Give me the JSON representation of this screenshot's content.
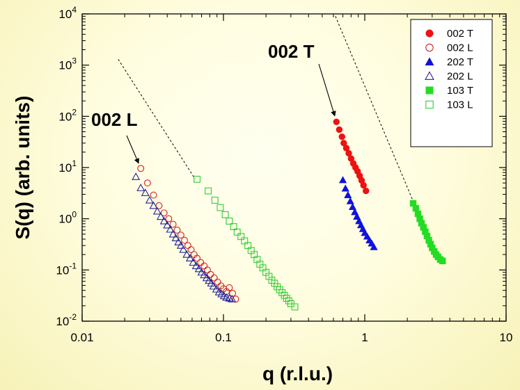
{
  "chart_data": {
    "type": "scatter",
    "xscale": "log",
    "yscale": "log",
    "xlim": [
      0.01,
      10
    ],
    "ylim": [
      0.01,
      10000
    ],
    "xlabel": "q  (r.l.u.)",
    "ylabel": "S(q)   (arb. units)",
    "x_ticks": [
      {
        "value": 0.01,
        "label": "0.01"
      },
      {
        "value": 0.1,
        "label": "0.1"
      },
      {
        "value": 1,
        "label": "1"
      },
      {
        "value": 10,
        "label": "10"
      }
    ],
    "y_ticks": [
      {
        "value": 0.01,
        "base": "10",
        "exp": "-2"
      },
      {
        "value": 0.1,
        "base": "10",
        "exp": "-1"
      },
      {
        "value": 1,
        "base": "10",
        "exp": "0"
      },
      {
        "value": 10,
        "base": "10",
        "exp": "1"
      },
      {
        "value": 100,
        "base": "10",
        "exp": "2"
      },
      {
        "value": 1000,
        "base": "10",
        "exp": "3"
      },
      {
        "value": 10000,
        "base": "10",
        "exp": "4"
      }
    ],
    "legend_position": "top-right",
    "series": [
      {
        "name": "002 T",
        "marker": "circle",
        "filled": true,
        "color": "#ee1111",
        "x": [
          0.63,
          0.66,
          0.69,
          0.71,
          0.74,
          0.77,
          0.8,
          0.83,
          0.86,
          0.89,
          0.92,
          0.95,
          0.98,
          1.02
        ],
        "y": [
          78,
          55,
          40,
          30,
          24,
          19,
          15,
          12,
          10,
          8.4,
          6.9,
          5.6,
          4.5,
          3.5
        ]
      },
      {
        "name": "002 L",
        "marker": "circle",
        "filled": false,
        "color": "#cc2222",
        "x": [
          0.026,
          0.029,
          0.032,
          0.035,
          0.038,
          0.041,
          0.044,
          0.047,
          0.05,
          0.053,
          0.056,
          0.059,
          0.062,
          0.065,
          0.069,
          0.073,
          0.077,
          0.081,
          0.086,
          0.091,
          0.096,
          0.1,
          0.105,
          0.11,
          0.116,
          0.122
        ],
        "y": [
          9.6,
          5.0,
          2.9,
          1.8,
          1.3,
          1.0,
          0.78,
          0.6,
          0.48,
          0.38,
          0.3,
          0.25,
          0.2,
          0.17,
          0.14,
          0.12,
          0.1,
          0.082,
          0.07,
          0.058,
          0.049,
          0.043,
          0.038,
          0.045,
          0.035,
          0.027
        ]
      },
      {
        "name": "202 T",
        "marker": "triangle",
        "filled": true,
        "color": "#1111dd",
        "x": [
          0.7,
          0.73,
          0.76,
          0.79,
          0.82,
          0.85,
          0.88,
          0.91,
          0.94,
          0.97,
          1.0,
          1.04,
          1.08,
          1.12,
          1.16
        ],
        "y": [
          5.7,
          3.9,
          2.9,
          2.2,
          1.7,
          1.35,
          1.1,
          0.9,
          0.75,
          0.63,
          0.53,
          0.45,
          0.38,
          0.33,
          0.28
        ]
      },
      {
        "name": "202 L",
        "marker": "triangle",
        "filled": false,
        "color": "#22229a",
        "x": [
          0.024,
          0.026,
          0.028,
          0.03,
          0.032,
          0.034,
          0.036,
          0.038,
          0.04,
          0.042,
          0.044,
          0.046,
          0.048,
          0.05,
          0.052,
          0.055,
          0.058,
          0.061,
          0.064,
          0.067,
          0.07,
          0.073,
          0.076,
          0.079,
          0.082,
          0.085,
          0.089,
          0.093,
          0.097,
          0.101,
          0.105,
          0.11,
          0.115
        ],
        "y": [
          6.6,
          4.0,
          3.2,
          2.3,
          1.8,
          1.4,
          1.1,
          0.9,
          0.75,
          0.62,
          0.5,
          0.42,
          0.35,
          0.3,
          0.25,
          0.2,
          0.17,
          0.14,
          0.12,
          0.105,
          0.09,
          0.08,
          0.07,
          0.062,
          0.055,
          0.048,
          0.042,
          0.037,
          0.034,
          0.031,
          0.029,
          0.028,
          0.027
        ]
      },
      {
        "name": "103 T",
        "marker": "square",
        "filled": true,
        "color": "#22dd22",
        "x": [
          2.2,
          2.3,
          2.38,
          2.45,
          2.52,
          2.6,
          2.68,
          2.76,
          2.84,
          2.92,
          3.0,
          3.1,
          3.2,
          3.3,
          3.42,
          3.55
        ],
        "y": [
          2.0,
          1.6,
          1.25,
          1.0,
          0.82,
          0.68,
          0.56,
          0.46,
          0.38,
          0.32,
          0.27,
          0.23,
          0.2,
          0.18,
          0.16,
          0.15
        ]
      },
      {
        "name": "103 L",
        "marker": "square",
        "filled": false,
        "color": "#33cc33",
        "x": [
          0.065,
          0.078,
          0.087,
          0.095,
          0.103,
          0.11,
          0.118,
          0.125,
          0.133,
          0.141,
          0.149,
          0.157,
          0.165,
          0.173,
          0.181,
          0.19,
          0.2,
          0.21,
          0.22,
          0.23,
          0.24,
          0.25,
          0.26,
          0.27,
          0.28,
          0.29,
          0.3,
          0.32
        ],
        "y": [
          5.9,
          3.5,
          2.3,
          1.65,
          1.2,
          0.9,
          0.7,
          0.55,
          0.45,
          0.37,
          0.3,
          0.24,
          0.2,
          0.16,
          0.13,
          0.11,
          0.09,
          0.075,
          0.063,
          0.055,
          0.047,
          0.041,
          0.036,
          0.032,
          0.028,
          0.025,
          0.022,
          0.019
        ]
      }
    ],
    "guide_lines": [
      {
        "x": [
          0.018,
          0.063
        ],
        "y": [
          1300,
          6
        ]
      },
      {
        "x": [
          0.62,
          2.2
        ],
        "y": [
          9000,
          2.2
        ]
      }
    ],
    "annotations": [
      {
        "text": "002 T",
        "target": {
          "x": 0.63,
          "y": 80
        }
      },
      {
        "text": "002 L",
        "target": {
          "x": 0.026,
          "y": 9.6
        }
      }
    ]
  }
}
